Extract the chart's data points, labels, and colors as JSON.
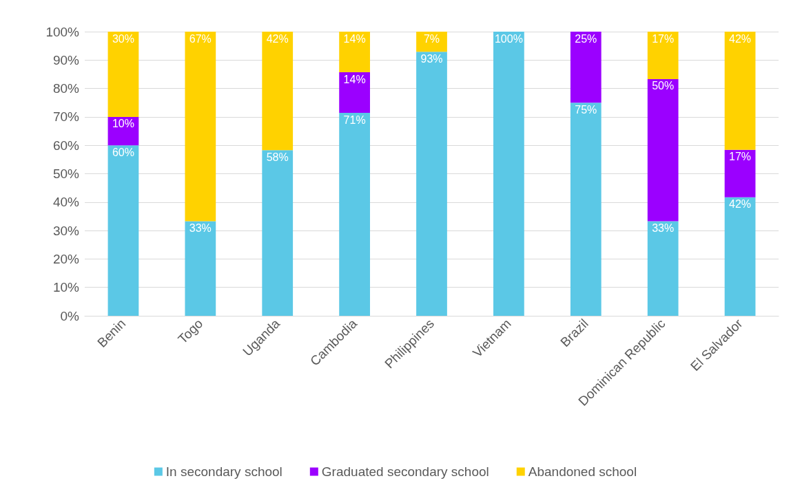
{
  "chart_data": {
    "type": "bar",
    "stacked": true,
    "categories": [
      "Benin",
      "Togo",
      "Uganda",
      "Cambodia",
      "Philippines",
      "Vietnam",
      "Brazil",
      "Dominican Republic",
      "El Salvador"
    ],
    "series": [
      {
        "name": "In secondary school",
        "color": "#5bc8e6",
        "values": [
          60,
          33.3,
          58.3,
          71.4,
          92.9,
          100,
          75,
          33.3,
          41.7
        ],
        "value_labels": [
          "60%",
          "33%",
          "58%",
          "71%",
          "93%",
          "100%",
          "75%",
          "33%",
          "42%"
        ]
      },
      {
        "name": "Graduated secondary school",
        "color": "#9b00ff",
        "values": [
          10,
          0,
          0,
          14.3,
          0,
          0,
          25,
          50,
          16.7
        ],
        "value_labels": [
          "10%",
          null,
          null,
          "14%",
          null,
          null,
          "25%",
          "50%",
          "17%"
        ]
      },
      {
        "name": "Abandoned school",
        "color": "#ffd200",
        "values": [
          30,
          66.7,
          41.7,
          14.3,
          7.1,
          0,
          0,
          16.7,
          41.7
        ],
        "value_labels": [
          "30%",
          "67%",
          "42%",
          "14%",
          "7%",
          null,
          null,
          "17%",
          "42%"
        ]
      }
    ],
    "ylim": [
      0,
      100
    ],
    "yticks": [
      {
        "value": 0,
        "label": "0%"
      },
      {
        "value": 10,
        "label": "10%"
      },
      {
        "value": 20,
        "label": "20%"
      },
      {
        "value": 30,
        "label": "30%"
      },
      {
        "value": 40,
        "label": "40%"
      },
      {
        "value": 50,
        "label": "50%"
      },
      {
        "value": 60,
        "label": "60%"
      },
      {
        "value": 70,
        "label": "70%"
      },
      {
        "value": 80,
        "label": "80%"
      },
      {
        "value": 90,
        "label": "90%"
      },
      {
        "value": 100,
        "label": "100%"
      }
    ],
    "grid": "y",
    "legend": "bottom"
  }
}
